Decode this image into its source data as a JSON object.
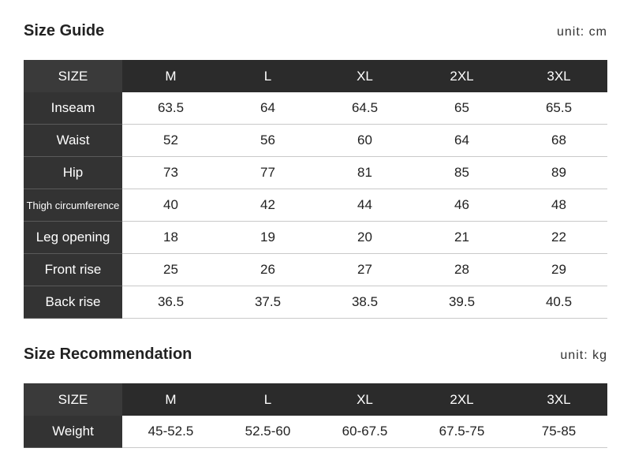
{
  "size_guide": {
    "title": "Size Guide",
    "unit": "unit: cm",
    "header": [
      "SIZE",
      "M",
      "L",
      "XL",
      "2XL",
      "3XL"
    ],
    "rows": [
      {
        "label": "Inseam",
        "values": [
          "63.5",
          "64",
          "64.5",
          "65",
          "65.5"
        ]
      },
      {
        "label": "Waist",
        "values": [
          "52",
          "56",
          "60",
          "64",
          "68"
        ]
      },
      {
        "label": "Hip",
        "values": [
          "73",
          "77",
          "81",
          "85",
          "89"
        ]
      },
      {
        "label": "Thigh circumference",
        "values": [
          "40",
          "42",
          "44",
          "46",
          "48"
        ]
      },
      {
        "label": "Leg opening",
        "values": [
          "18",
          "19",
          "20",
          "21",
          "22"
        ]
      },
      {
        "label": "Front rise",
        "values": [
          "25",
          "26",
          "27",
          "28",
          "29"
        ]
      },
      {
        "label": "Back rise",
        "values": [
          "36.5",
          "37.5",
          "38.5",
          "39.5",
          "40.5"
        ]
      }
    ]
  },
  "size_recommendation": {
    "title": "Size Recommendation",
    "unit": "unit: kg",
    "header": [
      "SIZE",
      "M",
      "L",
      "XL",
      "2XL",
      "3XL"
    ],
    "rows": [
      {
        "label": "Weight",
        "values": [
          "45-52.5",
          "52.5-60",
          "60-67.5",
          "67.5-75",
          "75-85"
        ]
      }
    ]
  }
}
